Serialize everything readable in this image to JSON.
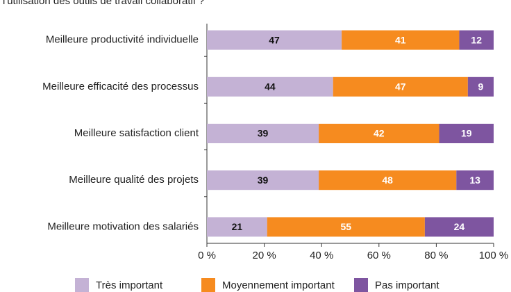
{
  "chart_data": {
    "type": "stacked_bar_horizontal",
    "title": "l'utilisation des outils de travail collaboratif ?",
    "categories": [
      "Meilleure productivité individuelle",
      "Meilleure efficacité des processus",
      "Meilleure satisfaction client",
      "Meilleure qualité des projets",
      "Meilleure motivation des salariés"
    ],
    "series": [
      {
        "name": "Très important",
        "color": "#c4b2d5",
        "values": [
          47,
          44,
          39,
          39,
          21
        ]
      },
      {
        "name": "Moyennement important",
        "color": "#f68b1f",
        "values": [
          41,
          47,
          42,
          48,
          55
        ]
      },
      {
        "name": "Pas important",
        "color": "#7e55a0",
        "values": [
          12,
          9,
          19,
          13,
          24
        ]
      }
    ],
    "xlim": [
      0,
      100
    ],
    "xticks": [
      {
        "value": 0,
        "label": "0 %"
      },
      {
        "value": 20,
        "label": "20 %"
      },
      {
        "value": 40,
        "label": "40 %"
      },
      {
        "value": 60,
        "label": "60 %"
      },
      {
        "value": 80,
        "label": "80 %"
      },
      {
        "value": 100,
        "label": "100 %"
      }
    ],
    "legend": "bottom"
  }
}
